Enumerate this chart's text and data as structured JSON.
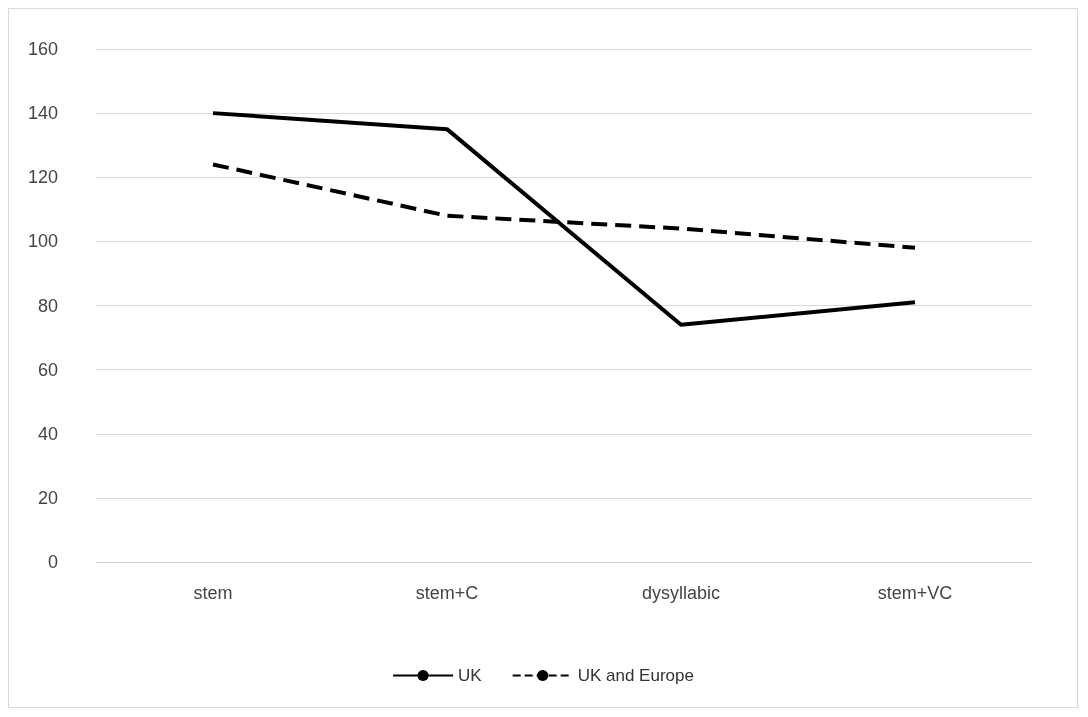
{
  "chart_data": {
    "type": "line",
    "categories": [
      "stem",
      "stem+C",
      "dysyllabic",
      "stem+VC"
    ],
    "series": [
      {
        "name": "UK",
        "color": "#000000",
        "line_style": "solid",
        "values": [
          140,
          135,
          74,
          81
        ]
      },
      {
        "name": "UK and Europe",
        "color": "#000000",
        "line_style": "dashed",
        "values": [
          124,
          108,
          104,
          98
        ]
      }
    ],
    "ylim": [
      0,
      160
    ],
    "yticks": [
      0,
      20,
      40,
      60,
      80,
      100,
      120,
      140,
      160
    ],
    "grid": "y",
    "legend": "bottom",
    "marker": "none"
  }
}
